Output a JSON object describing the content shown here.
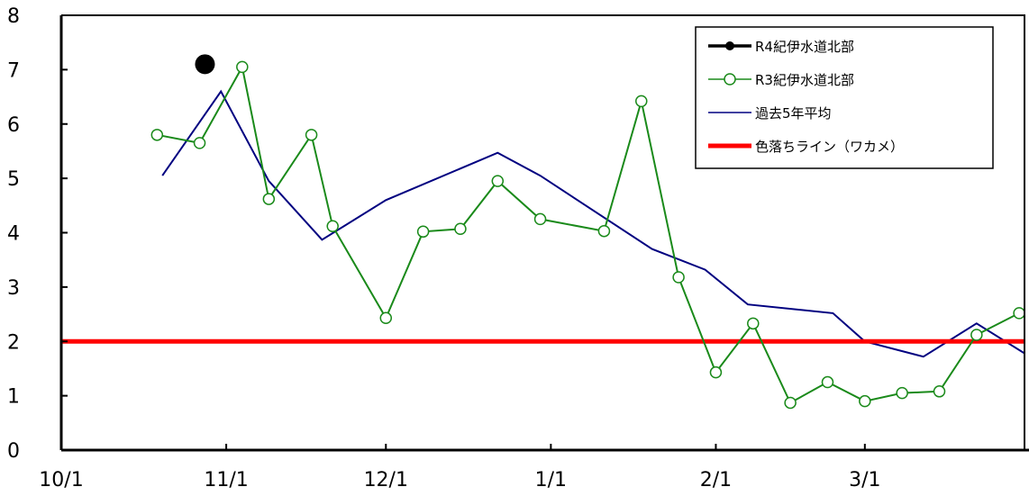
{
  "chart_data": {
    "type": "line",
    "title": "",
    "xlabel": "",
    "ylabel": "",
    "ylim": [
      0,
      8
    ],
    "yticks": [
      0,
      1,
      2,
      3,
      4,
      5,
      6,
      7,
      8
    ],
    "xlim": [
      "2021-10-01",
      "2022-03-31"
    ],
    "xticks": [
      {
        "label": "10/1",
        "date": "2021-10-01"
      },
      {
        "label": "11/1",
        "date": "2021-11-01"
      },
      {
        "label": "12/1",
        "date": "2021-12-01"
      },
      {
        "label": "1/1",
        "date": "2022-01-01"
      },
      {
        "label": "2/1",
        "date": "2022-02-01"
      },
      {
        "label": "3/1",
        "date": "2022-03-01"
      }
    ],
    "grid": false,
    "legend_position": "top-right",
    "series": [
      {
        "name": "R4紀伊水道北部",
        "color": "#000000",
        "marker": "filled-circle",
        "points": [
          [
            "2021-10-28",
            7.1
          ]
        ]
      },
      {
        "name": "R3紀伊水道北部",
        "color": "#1a8a1a",
        "marker": "open-circle",
        "points": [
          [
            "2021-10-19",
            5.8
          ],
          [
            "2021-10-27",
            5.65
          ],
          [
            "2021-11-04",
            7.05
          ],
          [
            "2021-11-09",
            4.62
          ],
          [
            "2021-11-17",
            5.8
          ],
          [
            "2021-11-21",
            4.12
          ],
          [
            "2021-12-01",
            2.43
          ],
          [
            "2021-12-08",
            4.02
          ],
          [
            "2021-12-15",
            4.07
          ],
          [
            "2021-12-22",
            4.95
          ],
          [
            "2021-12-30",
            4.25
          ],
          [
            "2022-01-11",
            4.03
          ],
          [
            "2022-01-18",
            6.42
          ],
          [
            "2022-01-25",
            3.18
          ],
          [
            "2022-02-01",
            1.43
          ],
          [
            "2022-02-08",
            2.33
          ],
          [
            "2022-02-15",
            0.87
          ],
          [
            "2022-02-22",
            1.25
          ],
          [
            "2022-03-01",
            0.9
          ],
          [
            "2022-03-08",
            1.05
          ],
          [
            "2022-03-15",
            1.08
          ],
          [
            "2022-03-22",
            2.12
          ],
          [
            "2022-03-30",
            2.52
          ]
        ]
      },
      {
        "name": "過去5年平均",
        "color": "#000080",
        "marker": "none",
        "points": [
          [
            "2021-10-20",
            5.05
          ],
          [
            "2021-10-31",
            6.6
          ],
          [
            "2021-11-09",
            4.95
          ],
          [
            "2021-11-19",
            3.87
          ],
          [
            "2021-12-01",
            4.6
          ],
          [
            "2021-12-22",
            5.47
          ],
          [
            "2021-12-30",
            5.05
          ],
          [
            "2022-01-20",
            3.7
          ],
          [
            "2022-01-30",
            3.32
          ],
          [
            "2022-02-07",
            2.68
          ],
          [
            "2022-02-23",
            2.52
          ],
          [
            "2022-03-01",
            2.0
          ],
          [
            "2022-03-12",
            1.72
          ],
          [
            "2022-03-22",
            2.33
          ],
          [
            "2022-03-31",
            1.78
          ]
        ]
      },
      {
        "name": "色落ちライン（ワカメ）",
        "color": "#ff0000",
        "marker": "none",
        "points": [
          [
            "2021-10-01",
            2
          ],
          [
            "2022-03-31",
            2
          ]
        ]
      }
    ]
  }
}
